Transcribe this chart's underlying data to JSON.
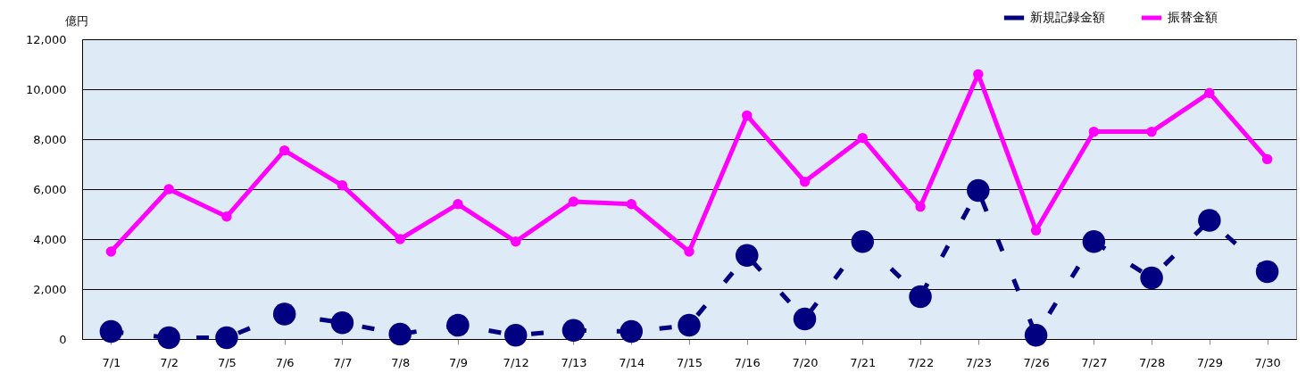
{
  "chart_data": {
    "type": "line",
    "ylabel": "億円",
    "categories": [
      "7/1",
      "7/2",
      "7/5",
      "7/6",
      "7/7",
      "7/8",
      "7/9",
      "7/12",
      "7/13",
      "7/14",
      "7/15",
      "7/16",
      "7/20",
      "7/21",
      "7/22",
      "7/23",
      "7/26",
      "7/27",
      "7/28",
      "7/29",
      "7/30"
    ],
    "series": [
      {
        "name": "新規記録金額",
        "color": "#000080",
        "line_style": "dashed",
        "values": [
          300,
          50,
          50,
          1000,
          650,
          200,
          550,
          150,
          350,
          300,
          550,
          3350,
          800,
          3900,
          1700,
          5950,
          150,
          3900,
          2450,
          4750,
          2700
        ]
      },
      {
        "name": "振替金額",
        "color": "#ff00ff",
        "line_style": "solid",
        "values": [
          3500,
          6000,
          4900,
          7550,
          6150,
          4000,
          5400,
          3900,
          5500,
          5400,
          3500,
          8950,
          6300,
          8050,
          5300,
          10600,
          4350,
          8300,
          8300,
          9850,
          7200
        ]
      }
    ],
    "ylim": [
      0,
      12000
    ],
    "yticks": [
      0,
      {
        "value": 2000,
        "label": "2,000"
      },
      {
        "value": 4000,
        "label": "4,000"
      },
      {
        "value": 6000,
        "label": "6,000"
      },
      {
        "value": 8000,
        "label": "8,000"
      },
      {
        "value": 10000,
        "label": "10,000"
      },
      {
        "value": 12000,
        "label": "12,000"
      }
    ],
    "grid": "y",
    "legend": "top right",
    "marker": "circle"
  }
}
